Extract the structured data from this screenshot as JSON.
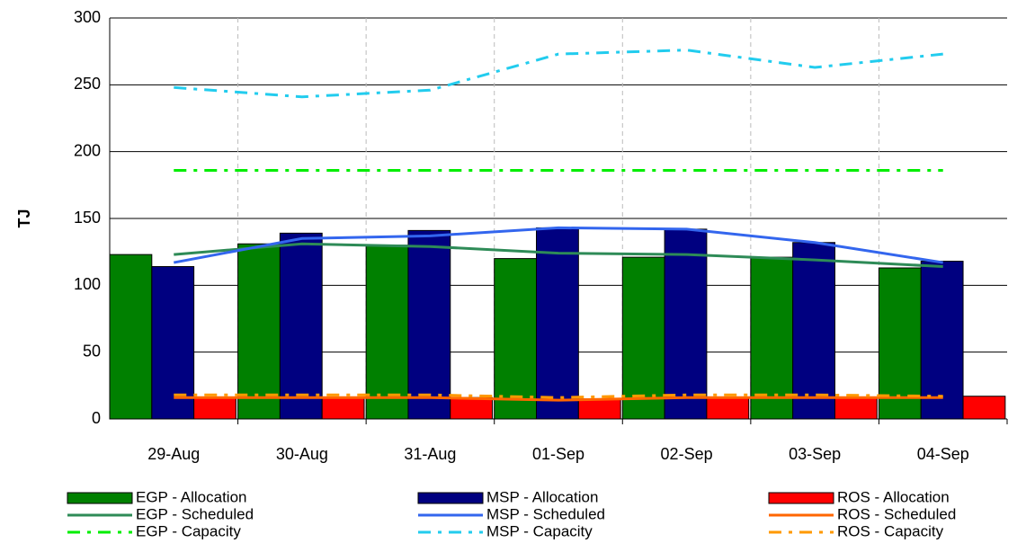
{
  "chart_data": {
    "type": "bar",
    "y_label": "TJ",
    "categories": [
      "29-Aug",
      "30-Aug",
      "31-Aug",
      "01-Sep",
      "02-Sep",
      "03-Sep",
      "04-Sep"
    ],
    "ylim": [
      0,
      300
    ],
    "yticks": [
      0,
      50,
      100,
      150,
      200,
      250,
      300
    ],
    "grid": true,
    "series": [
      {
        "name": "EGP - Allocation",
        "color": "#008000",
        "style": "bar",
        "values": [
          123,
          131,
          130,
          120,
          121,
          121,
          113
        ]
      },
      {
        "name": "MSP - Allocation",
        "color": "#000080",
        "style": "bar",
        "values": [
          114,
          139,
          141,
          143,
          142,
          132,
          118
        ]
      },
      {
        "name": "ROS - Allocation",
        "color": "#ff0000",
        "style": "bar",
        "values": [
          16,
          16,
          16,
          15,
          16,
          16,
          17
        ]
      },
      {
        "name": "EGP - Scheduled",
        "color": "#2e8b57",
        "style": "solid",
        "values": [
          123,
          131,
          129,
          124,
          123,
          119,
          114
        ]
      },
      {
        "name": "MSP - Scheduled",
        "color": "#3366ee",
        "style": "solid",
        "values": [
          117,
          135,
          137,
          143,
          142,
          132,
          117
        ]
      },
      {
        "name": "ROS - Scheduled",
        "color": "#ff6600",
        "style": "solid",
        "values": [
          16,
          16,
          16,
          14,
          16,
          16,
          16
        ]
      },
      {
        "name": "EGP - Capacity",
        "color": "#00ee00",
        "style": "dash-dot",
        "values": [
          186,
          186,
          186,
          186,
          186,
          186,
          186
        ]
      },
      {
        "name": "MSP - Capacity",
        "color": "#22ccee",
        "style": "dash-dot",
        "values": [
          248,
          241,
          246,
          273,
          276,
          263,
          273
        ]
      },
      {
        "name": "ROS - Capacity",
        "color": "#ff9900",
        "style": "dash-dot",
        "values": [
          18,
          18,
          18,
          16,
          18,
          18,
          17
        ]
      }
    ]
  }
}
